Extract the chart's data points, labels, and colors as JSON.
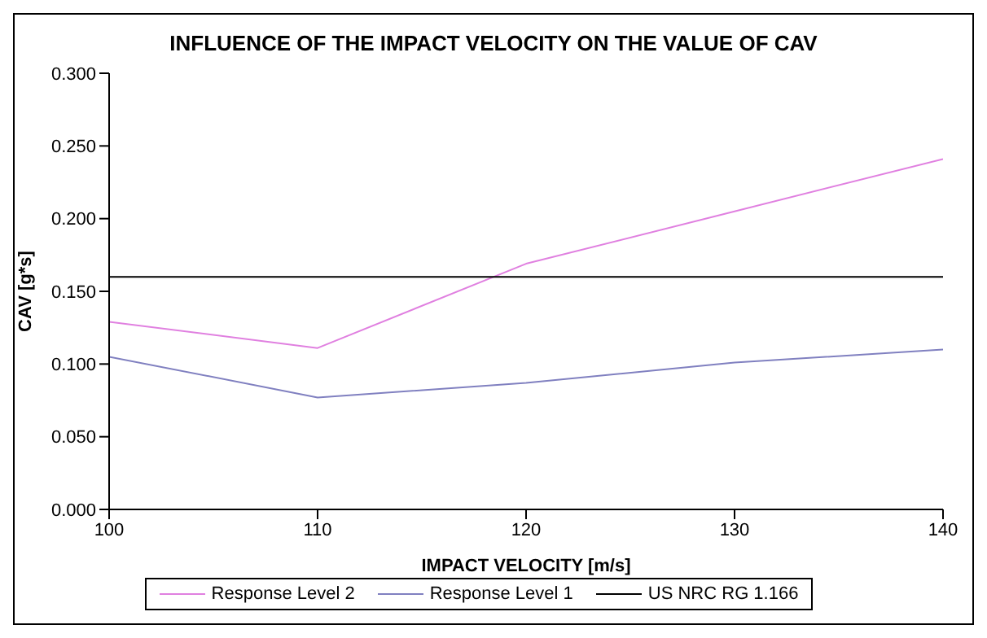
{
  "chart_data": {
    "type": "line",
    "title": "INFLUENCE OF THE IMPACT VELOCITY ON THE VALUE OF CAV",
    "xlabel": "IMPACT VELOCITY [m/s]",
    "ylabel": "CAV [g*s]",
    "x": [
      100,
      110,
      120,
      130,
      140
    ],
    "series": [
      {
        "name": "Response Level 2",
        "color": "#e080e0",
        "values": [
          0.129,
          0.111,
          0.169,
          0.205,
          0.241
        ]
      },
      {
        "name": "Response Level 1",
        "color": "#8080c0",
        "values": [
          0.105,
          0.077,
          0.087,
          0.101,
          0.11
        ]
      },
      {
        "name": "US NRC RG 1.166",
        "color": "#000000",
        "values": [
          0.16,
          0.16,
          0.16,
          0.16,
          0.16
        ]
      }
    ],
    "xlim": [
      100,
      140
    ],
    "xticks": [
      100,
      110,
      120,
      130,
      140
    ],
    "ylim": [
      0,
      0.3
    ],
    "yticks": [
      {
        "value": 0,
        "label": "0.000"
      },
      {
        "value": 0.05,
        "label": "0.050"
      },
      {
        "value": 0.1,
        "label": "0.100"
      },
      {
        "value": 0.15,
        "label": "0.150"
      },
      {
        "value": 0.2,
        "label": "0.200"
      },
      {
        "value": 0.25,
        "label": "0.250"
      },
      {
        "value": 0.3,
        "label": "0.300"
      }
    ],
    "grid": false,
    "legend": "bottom",
    "marker": "none",
    "line_style": "solid"
  }
}
